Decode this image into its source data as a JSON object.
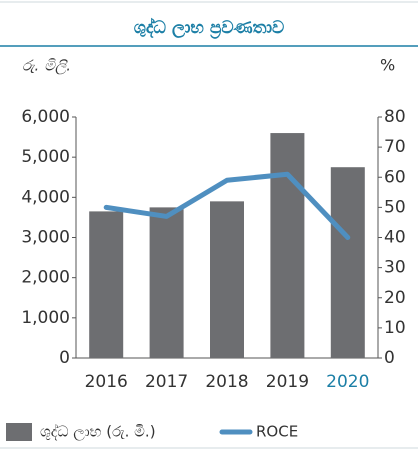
{
  "chart_data": {
    "type": "bar_line",
    "title": "ශුද්ධ ලාභ ප්‍රවණතාව",
    "y_label": "රු. මිලි.",
    "y2_label": "%",
    "categories": [
      "2016",
      "2017",
      "2018",
      "2019",
      "2020"
    ],
    "highlight_index": 4,
    "highlight_color": "#1c7fa6",
    "series": [
      {
        "name": "ශුද්ධ ලාභ (රු. මි.)",
        "type": "bar",
        "color": "#6d6e71",
        "values": [
          3650,
          3750,
          3900,
          5600,
          4750
        ]
      },
      {
        "name": "ROCE",
        "type": "line",
        "axis": "y2",
        "color": "#4f8fc0",
        "values": [
          50,
          47,
          59,
          61,
          40
        ]
      }
    ],
    "ylim": [
      0,
      6000
    ],
    "yticks": [
      {
        "value": 0,
        "label": "0"
      },
      {
        "value": 1000,
        "label": "1,000"
      },
      {
        "value": 2000,
        "label": "2,000"
      },
      {
        "value": 3000,
        "label": "3,000"
      },
      {
        "value": 4000,
        "label": "4,000"
      },
      {
        "value": 5000,
        "label": "5,000"
      },
      {
        "value": 6000,
        "label": "6,000"
      }
    ],
    "y2lim": [
      0,
      80
    ],
    "y2ticks": [
      0,
      10,
      20,
      30,
      40,
      50,
      60,
      70,
      80
    ]
  }
}
